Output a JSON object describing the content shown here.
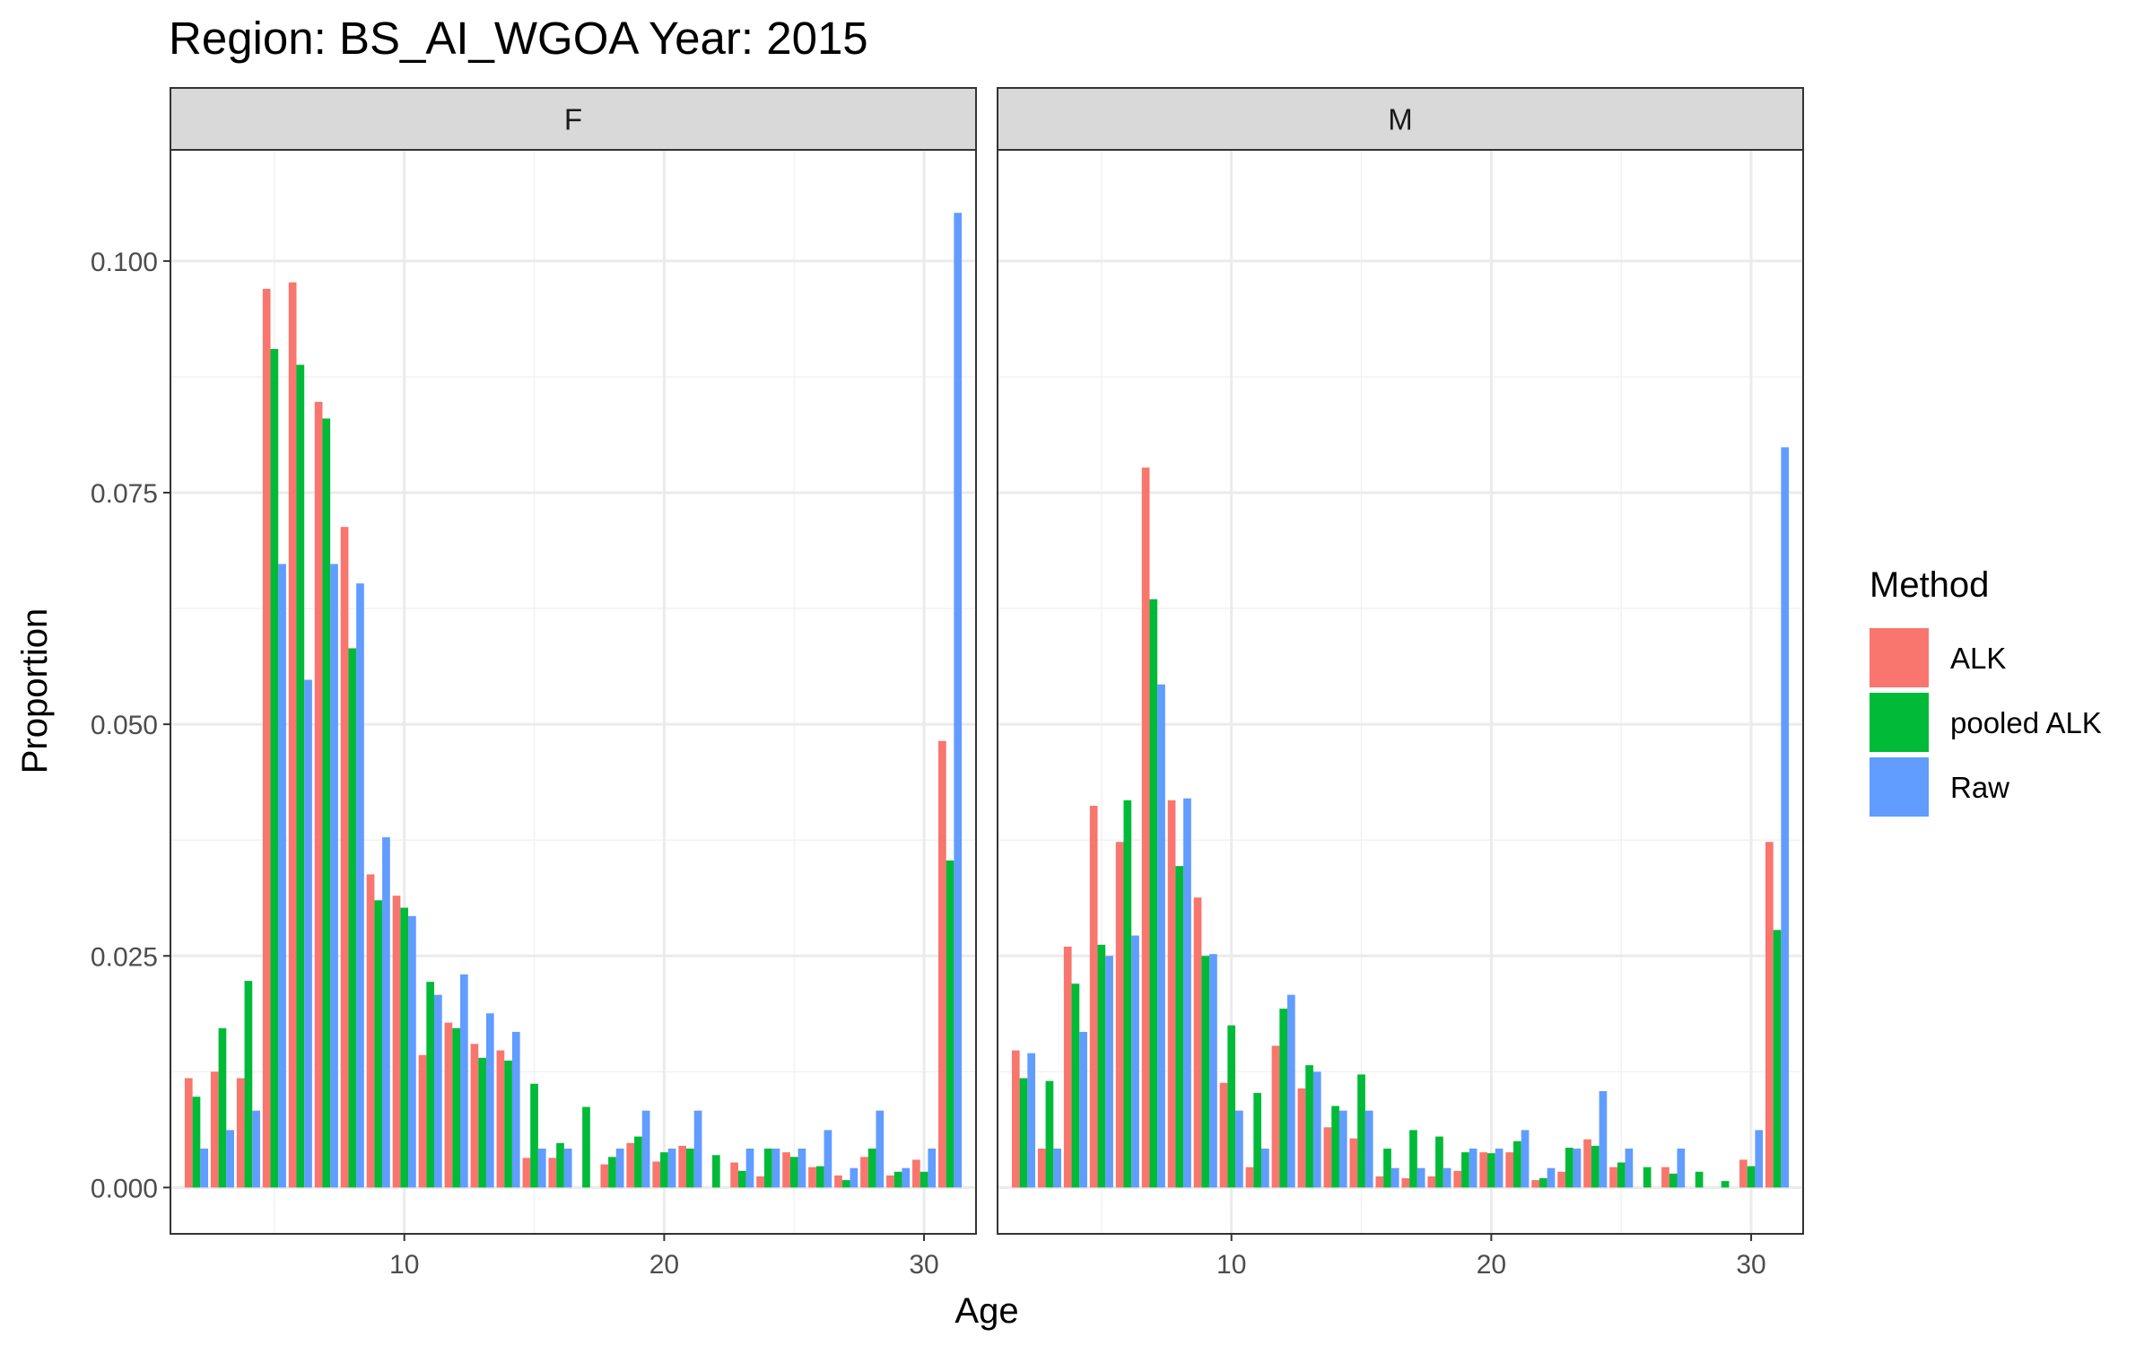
{
  "chart_data": {
    "type": "bar",
    "title": "Region: BS_AI_WGOA Year: 2015",
    "xlabel": "Age",
    "ylabel": "Proportion",
    "xlim": [
      1,
      32
    ],
    "ylim": [
      -0.005,
      0.112
    ],
    "x_ticks": [
      10,
      20,
      30
    ],
    "x_tick_labels": [
      "10",
      "20",
      "30"
    ],
    "y_ticks": [
      0,
      0.025,
      0.05,
      0.075,
      0.1
    ],
    "y_tick_labels": [
      "0.000",
      "0.025",
      "0.050",
      "0.075",
      "0.100"
    ],
    "grid": true,
    "legend": {
      "title": "Method",
      "position": "right",
      "entries": [
        {
          "name": "ALK",
          "color": "#F8766D"
        },
        {
          "name": "pooled ALK",
          "color": "#00BA38"
        },
        {
          "name": "Raw",
          "color": "#619CFF"
        }
      ]
    },
    "panels": [
      {
        "label": "F",
        "ages": [
          2,
          3,
          4,
          5,
          6,
          7,
          8,
          9,
          10,
          11,
          12,
          13,
          14,
          15,
          16,
          17,
          18,
          19,
          20,
          21,
          22,
          23,
          24,
          25,
          26,
          27,
          28,
          29,
          30,
          31
        ],
        "series": [
          {
            "name": "ALK",
            "values": [
              0.0118,
              0.0125,
              0.0118,
              0.097,
              0.0977,
              0.0848,
              0.0713,
              0.0338,
              0.0315,
              0.0143,
              0.0178,
              0.0155,
              0.0148,
              0.0032,
              0.0032,
              0,
              0.0025,
              0.0048,
              0.0028,
              0.0045,
              0,
              0.0027,
              0.0012,
              0.0038,
              0.0022,
              0.0013,
              0.0033,
              0.0013,
              0.003,
              0.0482
            ]
          },
          {
            "name": "pooled ALK",
            "values": [
              0.0098,
              0.0172,
              0.0223,
              0.0905,
              0.0888,
              0.083,
              0.0582,
              0.031,
              0.0302,
              0.0222,
              0.0172,
              0.014,
              0.0137,
              0.0112,
              0.0048,
              0.0087,
              0.0033,
              0.0055,
              0.0038,
              0.0042,
              0.0035,
              0.0018,
              0.0042,
              0.0033,
              0.0023,
              0.0008,
              0.0042,
              0.0017,
              0.0017,
              0.0353
            ]
          },
          {
            "name": "Raw",
            "values": [
              0.0042,
              0.0062,
              0.0083,
              0.0673,
              0.0548,
              0.0673,
              0.0652,
              0.0378,
              0.0293,
              0.0208,
              0.023,
              0.0188,
              0.0168,
              0.0042,
              0.0042,
              0,
              0.0042,
              0.0083,
              0.0042,
              0.0083,
              0,
              0.0042,
              0.0042,
              0.0042,
              0.0062,
              0.0021,
              0.0083,
              0.0021,
              0.0042,
              0.1052
            ]
          }
        ]
      },
      {
        "label": "M",
        "ages": [
          2,
          3,
          4,
          5,
          6,
          7,
          8,
          9,
          10,
          11,
          12,
          13,
          14,
          15,
          16,
          17,
          18,
          19,
          20,
          21,
          22,
          23,
          24,
          25,
          26,
          27,
          28,
          29,
          30,
          31
        ],
        "series": [
          {
            "name": "ALK",
            "values": [
              0.0148,
              0.0042,
              0.026,
              0.0412,
              0.0373,
              0.0777,
              0.0418,
              0.0313,
              0.0113,
              0.0022,
              0.0153,
              0.0107,
              0.0065,
              0.0053,
              0.0012,
              0.001,
              0.0012,
              0.0018,
              0.0038,
              0.0038,
              0.0008,
              0.0017,
              0.0052,
              0.0022,
              0,
              0.0022,
              0,
              0,
              0.003,
              0.0373
            ]
          },
          {
            "name": "pooled ALK",
            "values": [
              0.0118,
              0.0115,
              0.022,
              0.0262,
              0.0418,
              0.0635,
              0.0347,
              0.025,
              0.0175,
              0.0102,
              0.0193,
              0.0132,
              0.0088,
              0.0122,
              0.0042,
              0.0062,
              0.0055,
              0.0038,
              0.0037,
              0.005,
              0.001,
              0.0043,
              0.0045,
              0.0027,
              0.0022,
              0.0015,
              0.0017,
              0.0007,
              0.0023,
              0.0278
            ]
          },
          {
            "name": "Raw",
            "values": [
              0.0145,
              0.0042,
              0.0168,
              0.025,
              0.0272,
              0.0543,
              0.042,
              0.0252,
              0.0083,
              0.0042,
              0.0208,
              0.0125,
              0.0083,
              0.0083,
              0.0021,
              0.0021,
              0.0021,
              0.0042,
              0.0042,
              0.0062,
              0.0021,
              0.0042,
              0.0104,
              0.0042,
              0,
              0.0042,
              0,
              0,
              0.0062,
              0.0799
            ]
          }
        ]
      }
    ]
  }
}
